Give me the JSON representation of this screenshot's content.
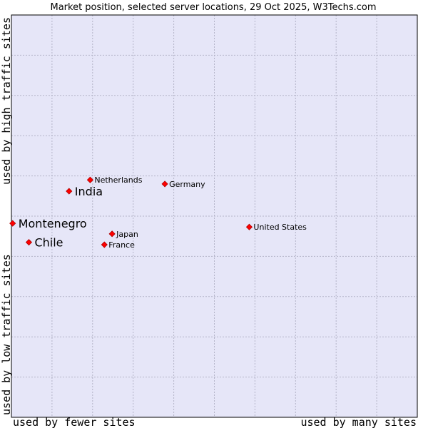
{
  "chart_data": {
    "type": "scatter",
    "title": "Market position, selected server locations, 29 Oct 2025, W3Techs.com",
    "xlabel_left": "used by fewer sites",
    "xlabel_right": "used by many sites",
    "ylabel_bottom": "used by low traffic sites",
    "ylabel_top": "used by high traffic sites",
    "xlim": [
      0,
      100
    ],
    "ylim": [
      0,
      100
    ],
    "grid": true,
    "colors": {
      "plot_background": "#e6e6f8",
      "grid": "#b4b4c8",
      "marker": "#ff0000",
      "marker_edge": "#aa0000"
    },
    "points": [
      {
        "name": "Netherlands",
        "x": 19.4,
        "y": 59.0,
        "highlight": false
      },
      {
        "name": "India",
        "x": 14.2,
        "y": 56.2,
        "highlight": true
      },
      {
        "name": "Germany",
        "x": 37.8,
        "y": 58.0,
        "highlight": false
      },
      {
        "name": "Montenegro",
        "x": 0.3,
        "y": 48.2,
        "highlight": true
      },
      {
        "name": "United States",
        "x": 58.6,
        "y": 47.3,
        "highlight": false
      },
      {
        "name": "Japan",
        "x": 24.8,
        "y": 45.6,
        "highlight": false
      },
      {
        "name": "Chile",
        "x": 4.3,
        "y": 43.5,
        "highlight": true
      },
      {
        "name": "France",
        "x": 22.9,
        "y": 42.9,
        "highlight": false
      }
    ]
  }
}
